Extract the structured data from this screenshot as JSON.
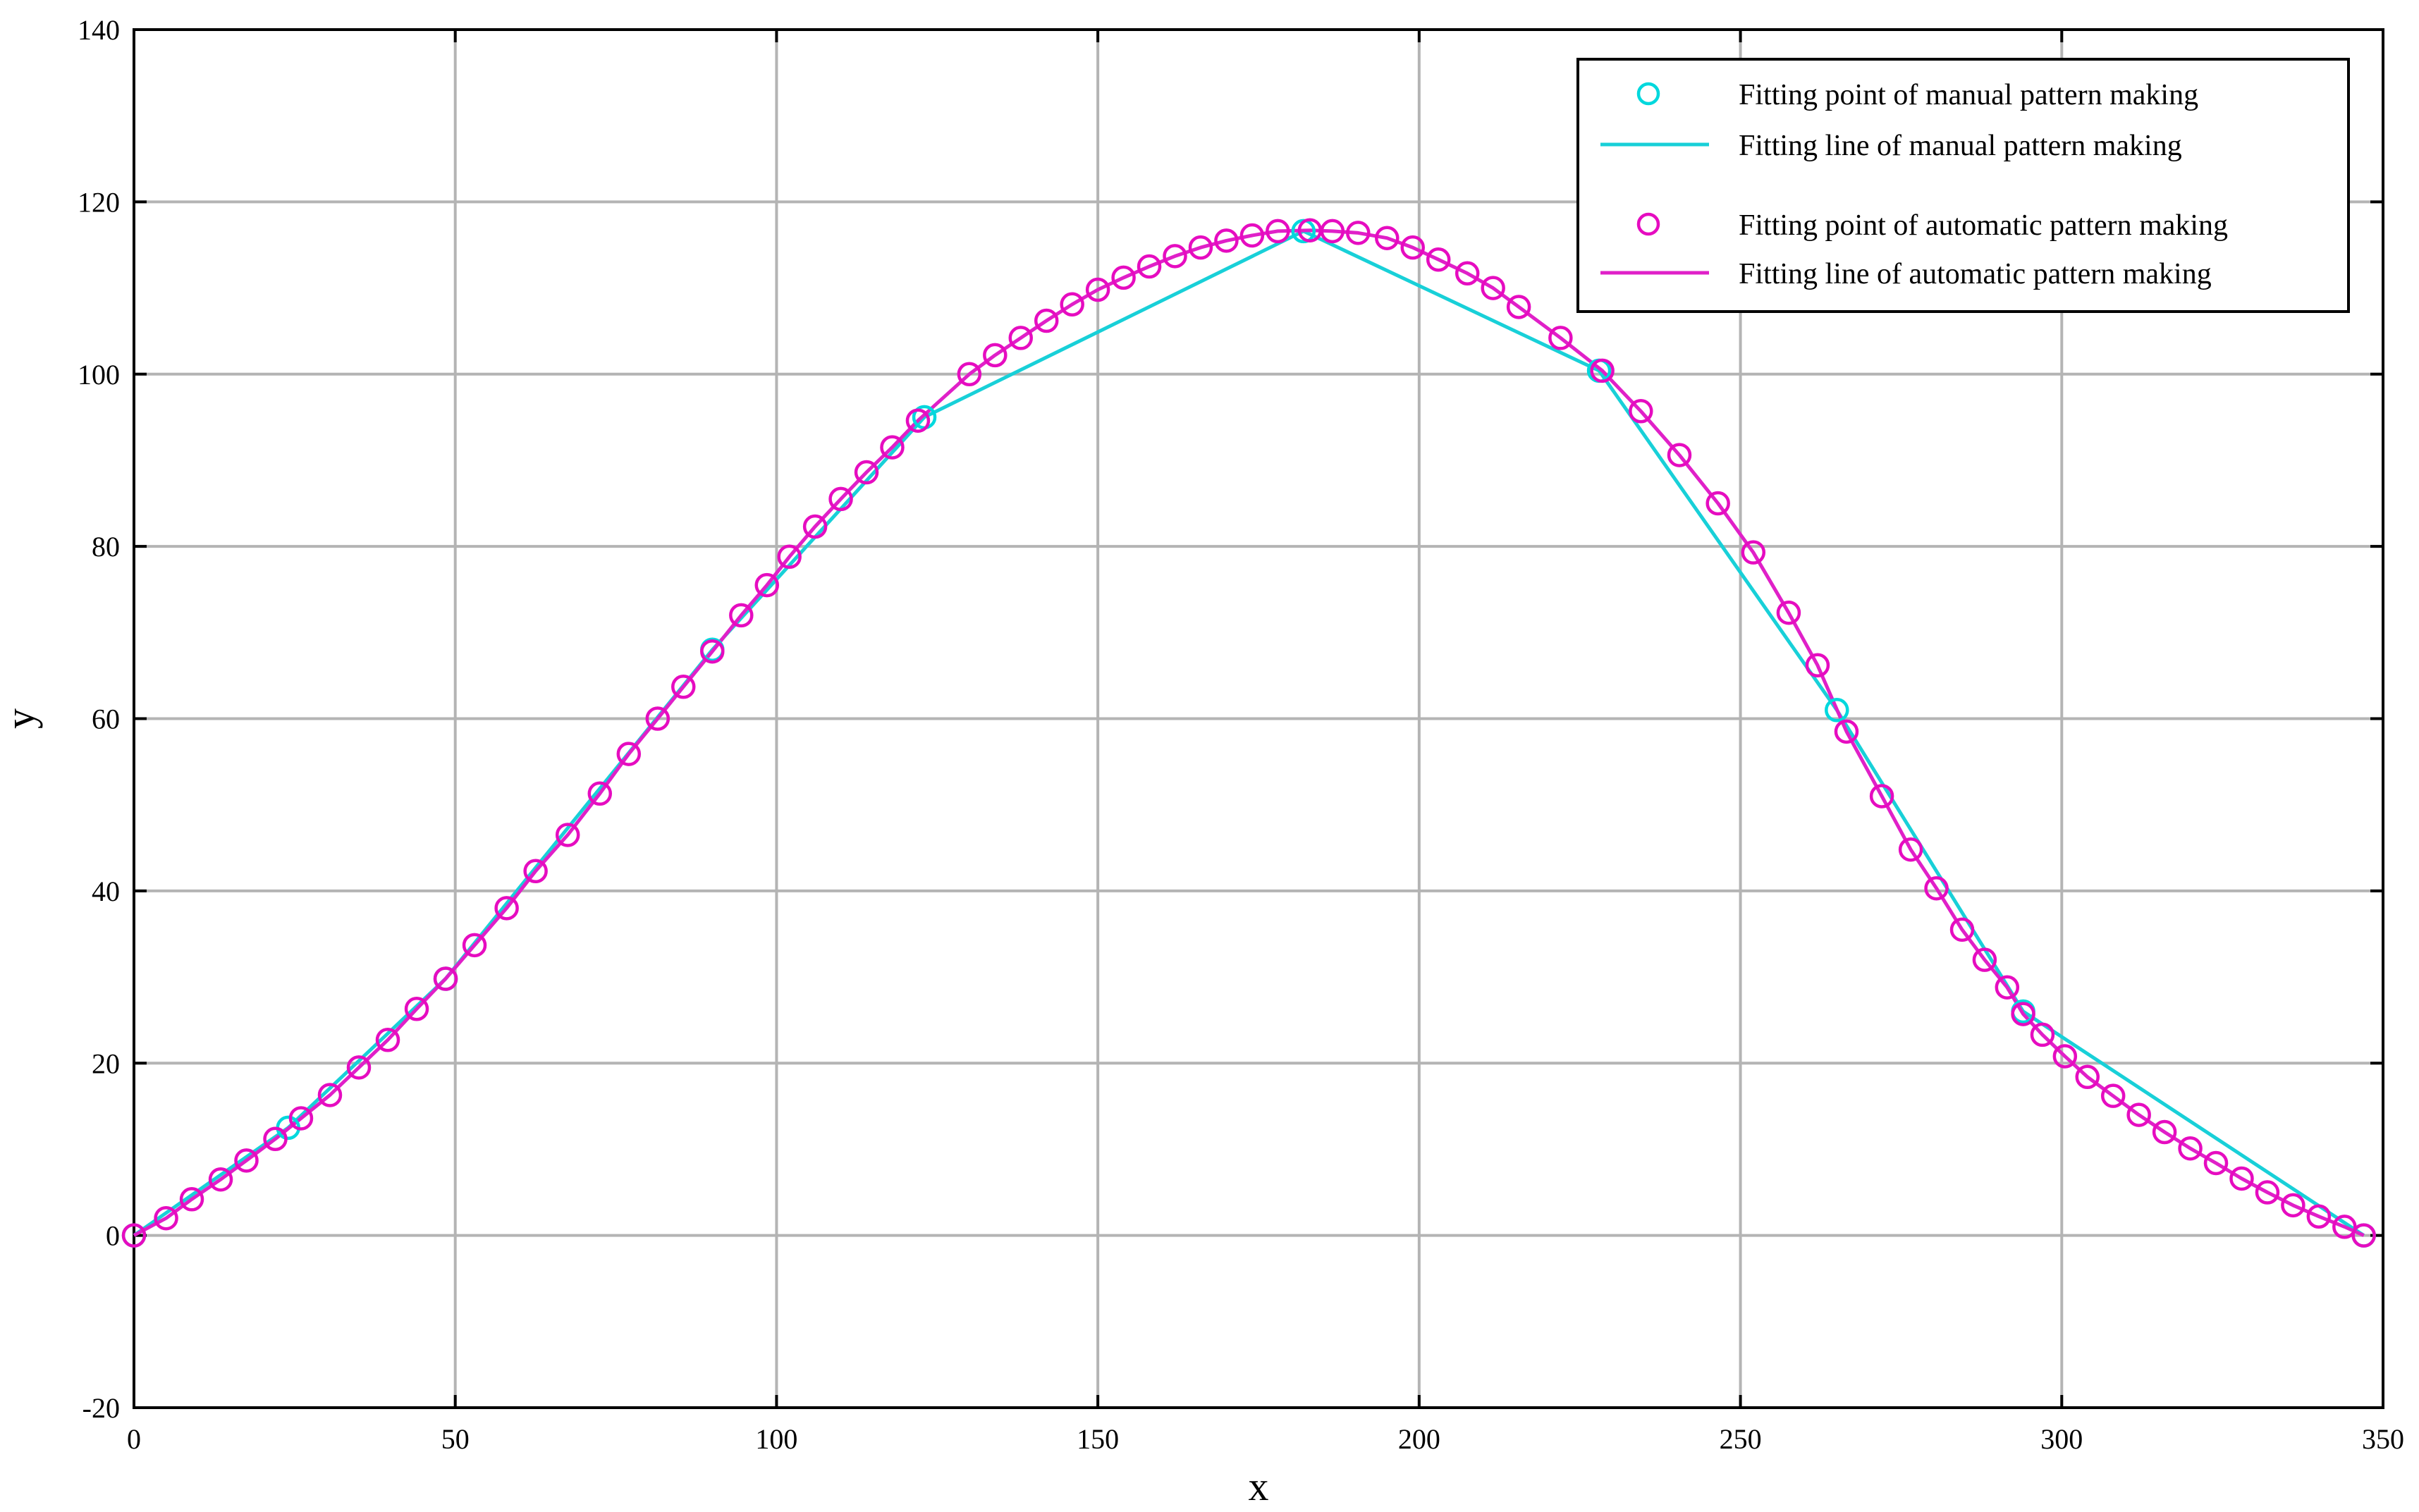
{
  "chart_data": {
    "type": "scatter",
    "title": "",
    "xlabel": "x",
    "ylabel": "y",
    "xlim": [
      0,
      350
    ],
    "ylim": [
      -20,
      140
    ],
    "x_ticks": [
      0,
      50,
      100,
      150,
      200,
      250,
      300,
      350
    ],
    "y_ticks": [
      -20,
      0,
      20,
      40,
      60,
      80,
      100,
      120,
      140
    ],
    "grid": true,
    "legend_position": "top-right",
    "series": [
      {
        "name": "Fitting point of manual pattern making",
        "kind": "points",
        "color": "#00d8dd",
        "points": [
          [
            0,
            0
          ],
          [
            24,
            12.5
          ],
          [
            48.5,
            29.8
          ],
          [
            90,
            68
          ],
          [
            123,
            95
          ],
          [
            182,
            116.6
          ],
          [
            228,
            100.4
          ],
          [
            265,
            61
          ],
          [
            294,
            26
          ],
          [
            347,
            0
          ]
        ]
      },
      {
        "name": "Fitting line of manual pattern making",
        "kind": "line",
        "color": "#18d0d8",
        "points": [
          [
            0,
            0
          ],
          [
            24,
            12.5
          ],
          [
            48.5,
            29.8
          ],
          [
            90,
            68
          ],
          [
            123,
            95
          ],
          [
            182,
            116.6
          ],
          [
            228,
            100.4
          ],
          [
            265,
            61
          ],
          [
            294,
            26
          ],
          [
            347,
            0
          ]
        ]
      },
      {
        "name": "Fitting point of automatic pattern making",
        "kind": "points",
        "color": "#e60cc0",
        "points": [
          [
            0,
            0
          ],
          [
            5,
            2
          ],
          [
            9,
            4.2
          ],
          [
            13.5,
            6.5
          ],
          [
            17.5,
            8.7
          ],
          [
            22,
            11.2
          ],
          [
            26,
            13.6
          ],
          [
            30.5,
            16.3
          ],
          [
            35,
            19.5
          ],
          [
            39.5,
            22.7
          ],
          [
            44,
            26.3
          ],
          [
            48.5,
            29.8
          ],
          [
            53,
            33.7
          ],
          [
            58,
            38
          ],
          [
            62.5,
            42.3
          ],
          [
            67.5,
            46.5
          ],
          [
            72.5,
            51.3
          ],
          [
            77,
            55.9
          ],
          [
            81.5,
            60
          ],
          [
            85.5,
            63.7
          ],
          [
            90,
            67.8
          ],
          [
            94.5,
            72
          ],
          [
            98.5,
            75.5
          ],
          [
            102,
            78.8
          ],
          [
            106,
            82.3
          ],
          [
            110,
            85.5
          ],
          [
            114,
            88.6
          ],
          [
            118,
            91.5
          ],
          [
            122,
            94.6
          ],
          [
            130,
            100
          ],
          [
            134,
            102.2
          ],
          [
            138,
            104.2
          ],
          [
            142,
            106.2
          ],
          [
            146,
            108.1
          ],
          [
            150,
            109.8
          ],
          [
            154,
            111.2
          ],
          [
            158,
            112.5
          ],
          [
            162,
            113.7
          ],
          [
            166,
            114.7
          ],
          [
            170,
            115.5
          ],
          [
            174,
            116.1
          ],
          [
            178,
            116.6
          ],
          [
            183,
            116.7
          ],
          [
            186.5,
            116.6
          ],
          [
            190.5,
            116.4
          ],
          [
            195,
            115.8
          ],
          [
            199,
            114.7
          ],
          [
            203,
            113.3
          ],
          [
            207.5,
            111.7
          ],
          [
            211.5,
            110
          ],
          [
            215.5,
            107.8
          ],
          [
            222,
            104.2
          ],
          [
            228.5,
            100.4
          ],
          [
            234.5,
            95.7
          ],
          [
            240.5,
            90.6
          ],
          [
            246.5,
            85
          ],
          [
            252,
            79.3
          ],
          [
            257.5,
            72.3
          ],
          [
            262,
            66.2
          ],
          [
            266.5,
            58.5
          ],
          [
            272,
            51
          ],
          [
            276.5,
            44.8
          ],
          [
            280.5,
            40.3
          ],
          [
            284.5,
            35.5
          ],
          [
            288,
            32
          ],
          [
            291.5,
            28.8
          ],
          [
            294,
            25.7
          ],
          [
            297,
            23.3
          ],
          [
            300.5,
            20.8
          ],
          [
            304,
            18.4
          ],
          [
            308,
            16.2
          ],
          [
            312,
            14
          ],
          [
            316,
            12
          ],
          [
            320,
            10.1
          ],
          [
            324,
            8.4
          ],
          [
            328,
            6.6
          ],
          [
            332,
            5
          ],
          [
            336,
            3.5
          ],
          [
            340,
            2.2
          ],
          [
            344,
            1
          ],
          [
            347,
            0
          ]
        ]
      },
      {
        "name": "Fitting line of automatic pattern making",
        "kind": "line",
        "color": "#e020c8",
        "points": [
          [
            0,
            0
          ],
          [
            5,
            2
          ],
          [
            9,
            4.2
          ],
          [
            13.5,
            6.5
          ],
          [
            17.5,
            8.7
          ],
          [
            22,
            11.2
          ],
          [
            26,
            13.6
          ],
          [
            30.5,
            16.3
          ],
          [
            35,
            19.5
          ],
          [
            39.5,
            22.7
          ],
          [
            44,
            26.3
          ],
          [
            48.5,
            29.8
          ],
          [
            53,
            33.7
          ],
          [
            58,
            38
          ],
          [
            62.5,
            42.3
          ],
          [
            67.5,
            46.5
          ],
          [
            72.5,
            51.3
          ],
          [
            77,
            55.9
          ],
          [
            81.5,
            60
          ],
          [
            85.5,
            63.7
          ],
          [
            90,
            67.8
          ],
          [
            94.5,
            72
          ],
          [
            98.5,
            75.5
          ],
          [
            102,
            78.8
          ],
          [
            106,
            82.3
          ],
          [
            110,
            85.5
          ],
          [
            114,
            88.6
          ],
          [
            118,
            91.5
          ],
          [
            122,
            94.6
          ],
          [
            130,
            100
          ],
          [
            134,
            102.2
          ],
          [
            138,
            104.2
          ],
          [
            142,
            106.2
          ],
          [
            146,
            108.1
          ],
          [
            150,
            109.8
          ],
          [
            154,
            111.2
          ],
          [
            158,
            112.5
          ],
          [
            162,
            113.7
          ],
          [
            166,
            114.7
          ],
          [
            170,
            115.5
          ],
          [
            174,
            116.1
          ],
          [
            178,
            116.6
          ],
          [
            183,
            116.7
          ],
          [
            186.5,
            116.6
          ],
          [
            190.5,
            116.4
          ],
          [
            195,
            115.8
          ],
          [
            199,
            114.7
          ],
          [
            203,
            113.3
          ],
          [
            207.5,
            111.7
          ],
          [
            211.5,
            110
          ],
          [
            215.5,
            107.8
          ],
          [
            222,
            104.2
          ],
          [
            228.5,
            100.4
          ],
          [
            234.5,
            95.7
          ],
          [
            240.5,
            90.6
          ],
          [
            246.5,
            85
          ],
          [
            252,
            79.3
          ],
          [
            257.5,
            72.3
          ],
          [
            262,
            66.2
          ],
          [
            266.5,
            58.5
          ],
          [
            272,
            51
          ],
          [
            276.5,
            44.8
          ],
          [
            280.5,
            40.3
          ],
          [
            284.5,
            35.5
          ],
          [
            288,
            32
          ],
          [
            291.5,
            28.8
          ],
          [
            294,
            25.7
          ],
          [
            297,
            23.3
          ],
          [
            300.5,
            20.8
          ],
          [
            304,
            18.4
          ],
          [
            308,
            16.2
          ],
          [
            312,
            14
          ],
          [
            316,
            12
          ],
          [
            320,
            10.1
          ],
          [
            324,
            8.4
          ],
          [
            328,
            6.6
          ],
          [
            332,
            5
          ],
          [
            336,
            3.5
          ],
          [
            340,
            2.2
          ],
          [
            344,
            1
          ],
          [
            347,
            0
          ]
        ]
      }
    ]
  }
}
